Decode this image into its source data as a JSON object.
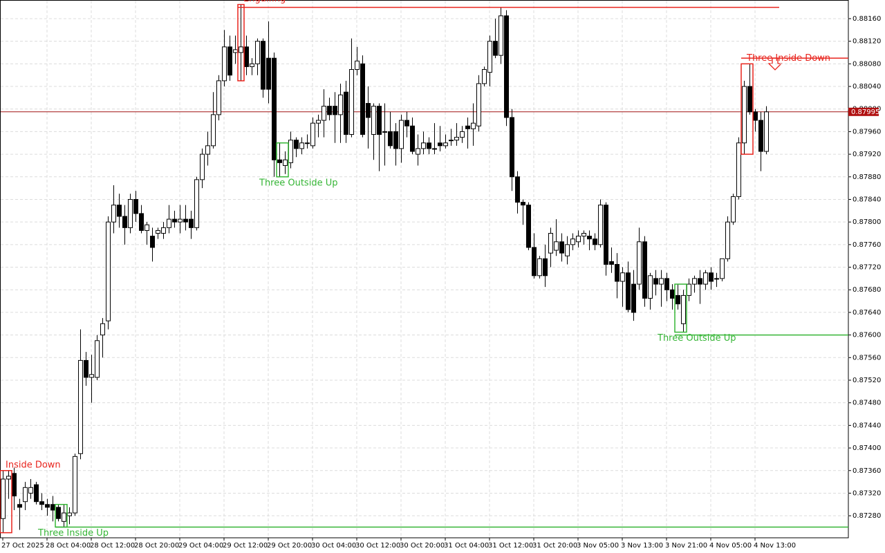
{
  "chart_data": {
    "type": "candlestick",
    "categories": [
      "27 Oct 2025",
      null,
      null,
      null,
      null,
      null,
      null,
      null,
      "28 Oct 04:00",
      null,
      null,
      null,
      null,
      null,
      null,
      null,
      "28 Oct 12:00",
      null,
      null,
      null,
      null,
      null,
      null,
      null,
      "28 Oct 20:00",
      null,
      null,
      null,
      null,
      null,
      null,
      null,
      "29 Oct 04:00",
      null,
      null,
      null,
      null,
      null,
      null,
      null,
      "29 Oct 12:00",
      null,
      null,
      null,
      null,
      null,
      null,
      null,
      "29 Oct 20:00",
      null,
      null,
      null,
      null,
      null,
      null,
      null,
      "30 Oct 04:00",
      null,
      null,
      null,
      null,
      null,
      null,
      null,
      "30 Oct 12:00",
      null,
      null,
      null,
      null,
      null,
      null,
      null,
      "30 Oct 20:00",
      null,
      null,
      null,
      null,
      null,
      null,
      null,
      "31 Oct 04:00",
      null,
      null,
      null,
      null,
      null,
      null,
      null,
      "31 Oct 12:00",
      null,
      null,
      null,
      null,
      null,
      null,
      null,
      "31 Oct 20:00",
      null,
      null,
      null,
      null,
      null,
      null,
      null,
      "3 Nov 05:00",
      null,
      null,
      null,
      null,
      null,
      null,
      null,
      "3 Nov 13:00",
      null,
      null,
      null,
      null,
      null,
      null,
      null,
      "3 Nov 21:00",
      null,
      null,
      null,
      null,
      null,
      null,
      null,
      "4 Nov 05:00",
      null,
      null,
      null,
      null,
      null,
      null,
      null,
      "4 Nov 13:00",
      null,
      null
    ],
    "open": [
      0.87275,
      0.87345,
      0.87355,
      0.873,
      0.87305,
      0.8732,
      0.87335,
      0.87305,
      0.873,
      0.873,
      0.87295,
      0.8727,
      0.8728,
      0.87285,
      0.8739,
      0.87555,
      0.87525,
      0.87525,
      0.876,
      0.87625,
      0.878,
      0.8783,
      0.8781,
      0.8779,
      0.8784,
      0.87815,
      0.87785,
      0.87775,
      0.8778,
      0.8778,
      0.8779,
      0.87805,
      0.878,
      0.87805,
      0.87805,
      0.8779,
      0.87875,
      0.8792,
      0.87935,
      0.8799,
      0.8805,
      0.8811,
      0.881,
      0.881,
      0.8811,
      0.88075,
      0.8808,
      0.8812,
      0.8809,
      0.8809,
      0.8791,
      0.879,
      0.87905,
      0.87945,
      0.8793,
      0.8794,
      0.87935,
      0.87975,
      0.8798,
      0.88005,
      0.88005,
      0.8799,
      0.8803,
      0.87955,
      0.8807,
      0.8808,
      0.8801,
      0.87955,
      0.88005,
      0.8796,
      0.8796,
      0.8796,
      0.8793,
      0.8798,
      0.8797,
      0.8792,
      0.8793,
      0.8794,
      0.8793,
      0.8794,
      0.87935,
      0.87945,
      0.87945,
      0.8795,
      0.8797,
      0.87965,
      0.8797,
      0.88045,
      0.88065,
      0.8812,
      0.88095,
      0.88165,
      0.87985,
      0.8788,
      0.87835,
      0.8783,
      0.87755,
      0.87705,
      0.87735,
      0.87745,
      0.8775,
      0.87765,
      0.8774,
      0.8776,
      0.87765,
      0.87775,
      0.87775,
      0.8777,
      0.8776,
      0.8783,
      0.8773,
      0.87725,
      0.87695,
      0.8771,
      0.8769,
      0.8769,
      0.87765,
      0.87665,
      0.877,
      0.8769,
      0.877,
      0.8768,
      0.8767,
      0.8762,
      0.8767,
      0.8769,
      0.877,
      0.8769,
      0.8771,
      0.877,
      0.877,
      0.87735,
      0.878,
      0.87845,
      0.8794,
      0.8804,
      0.87995,
      0.8798,
      0.87925
    ],
    "high": [
      0.8736,
      0.8736,
      0.87365,
      0.8731,
      0.8734,
      0.87345,
      0.8734,
      0.8732,
      0.8731,
      0.87315,
      0.873,
      0.873,
      0.87295,
      0.8739,
      0.8761,
      0.8757,
      0.87565,
      0.876,
      0.8763,
      0.8781,
      0.87865,
      0.8785,
      0.8783,
      0.8785,
      0.87855,
      0.8783,
      0.878,
      0.8779,
      0.8779,
      0.878,
      0.8783,
      0.8782,
      0.8783,
      0.8783,
      0.8782,
      0.8788,
      0.8793,
      0.8796,
      0.8803,
      0.8806,
      0.8814,
      0.8813,
      0.8813,
      0.88185,
      0.8813,
      0.8809,
      0.88125,
      0.88125,
      0.88155,
      0.881,
      0.8794,
      0.87925,
      0.8796,
      0.8795,
      0.8795,
      0.87955,
      0.87985,
      0.8799,
      0.88035,
      0.8802,
      0.8803,
      0.88045,
      0.8805,
      0.88125,
      0.8811,
      0.88095,
      0.8804,
      0.8801,
      0.8801,
      0.8801,
      0.87995,
      0.87975,
      0.8799,
      0.87995,
      0.87985,
      0.87955,
      0.8796,
      0.8795,
      0.87975,
      0.8797,
      0.87955,
      0.87965,
      0.87975,
      0.8797,
      0.87985,
      0.8801,
      0.8806,
      0.88075,
      0.8813,
      0.8816,
      0.8818,
      0.88175,
      0.88,
      0.8789,
      0.8784,
      0.87835,
      0.8778,
      0.8774,
      0.8776,
      0.8779,
      0.87805,
      0.8778,
      0.87775,
      0.8778,
      0.87785,
      0.87785,
      0.87785,
      0.8778,
      0.8784,
      0.87835,
      0.87755,
      0.87745,
      0.8772,
      0.8773,
      0.87715,
      0.8779,
      0.87775,
      0.8771,
      0.87715,
      0.87715,
      0.8771,
      0.8769,
      0.8769,
      0.8768,
      0.877,
      0.87705,
      0.87715,
      0.87715,
      0.8772,
      0.8771,
      0.87735,
      0.8781,
      0.8785,
      0.8795,
      0.8805,
      0.8808,
      0.88,
      0.87995,
      0.88005
    ],
    "low": [
      0.8725,
      0.8731,
      0.8729,
      0.87255,
      0.8729,
      0.8731,
      0.873,
      0.8729,
      0.8728,
      0.8727,
      0.8727,
      0.8726,
      0.87265,
      0.8728,
      0.8738,
      0.8751,
      0.8748,
      0.8752,
      0.8756,
      0.8761,
      0.8778,
      0.8779,
      0.8776,
      0.8778,
      0.878,
      0.8778,
      0.8776,
      0.8773,
      0.8777,
      0.8777,
      0.8778,
      0.8779,
      0.8778,
      0.87785,
      0.8777,
      0.87785,
      0.8786,
      0.879,
      0.8793,
      0.8798,
      0.8804,
      0.8805,
      0.8808,
      0.8805,
      0.8806,
      0.8806,
      0.8806,
      0.8802,
      0.8801,
      0.8788,
      0.8788,
      0.87885,
      0.87895,
      0.87915,
      0.8792,
      0.8793,
      0.8793,
      0.8795,
      0.8795,
      0.8798,
      0.8794,
      0.8794,
      0.8794,
      0.8795,
      0.8806,
      0.8795,
      0.8793,
      0.8791,
      0.8789,
      0.879,
      0.8793,
      0.879,
      0.87905,
      0.8795,
      0.8792,
      0.879,
      0.8792,
      0.8792,
      0.8792,
      0.87925,
      0.8793,
      0.87935,
      0.87935,
      0.8794,
      0.8793,
      0.87935,
      0.8796,
      0.8804,
      0.8804,
      0.8809,
      0.8808,
      0.8797,
      0.87855,
      0.87815,
      0.87795,
      0.8775,
      0.877,
      0.877,
      0.87685,
      0.8772,
      0.8774,
      0.8773,
      0.87725,
      0.8775,
      0.87755,
      0.8776,
      0.8775,
      0.8775,
      0.87755,
      0.87705,
      0.8771,
      0.87665,
      0.8765,
      0.8764,
      0.87625,
      0.8768,
      0.8765,
      0.87645,
      0.8767,
      0.8765,
      0.8766,
      0.87645,
      0.87645,
      0.87605,
      0.8766,
      0.87675,
      0.87655,
      0.8768,
      0.8768,
      0.87685,
      0.87695,
      0.8773,
      0.87795,
      0.8784,
      0.8792,
      0.8799,
      0.8796,
      0.8789,
      0.8792
    ],
    "close": [
      0.87345,
      0.8735,
      0.87315,
      0.87295,
      0.8733,
      0.8733,
      0.87305,
      0.873,
      0.87295,
      0.8729,
      0.87275,
      0.87285,
      0.87285,
      0.87385,
      0.87555,
      0.87525,
      0.8753,
      0.8759,
      0.8762,
      0.878,
      0.8783,
      0.8781,
      0.8779,
      0.8784,
      0.87815,
      0.87785,
      0.87795,
      0.87755,
      0.87785,
      0.8779,
      0.87805,
      0.878,
      0.87805,
      0.878,
      0.8779,
      0.87875,
      0.8792,
      0.87935,
      0.8799,
      0.8805,
      0.8811,
      0.8806,
      0.88105,
      0.8811,
      0.88075,
      0.8808,
      0.8812,
      0.88035,
      0.88035,
      0.8791,
      0.87905,
      0.8791,
      0.87945,
      0.8793,
      0.8794,
      0.8794,
      0.87975,
      0.8798,
      0.88005,
      0.8799,
      0.8799,
      0.88025,
      0.87955,
      0.8807,
      0.88085,
      0.87955,
      0.87985,
      0.88005,
      0.87955,
      0.8796,
      0.87935,
      0.8793,
      0.8798,
      0.8797,
      0.87925,
      0.8793,
      0.8794,
      0.8793,
      0.8793,
      0.87935,
      0.8794,
      0.87945,
      0.8795,
      0.8796,
      0.87965,
      0.87975,
      0.88045,
      0.8807,
      0.8812,
      0.88095,
      0.88165,
      0.87985,
      0.8788,
      0.87835,
      0.8783,
      0.87755,
      0.87705,
      0.87735,
      0.87705,
      0.8778,
      0.87765,
      0.87745,
      0.8776,
      0.8777,
      0.87775,
      0.8778,
      0.8777,
      0.8776,
      0.8783,
      0.87725,
      0.87725,
      0.87695,
      0.8771,
      0.87645,
      0.8764,
      0.87765,
      0.87665,
      0.87705,
      0.8769,
      0.877,
      0.8768,
      0.87665,
      0.87655,
      0.8767,
      0.8769,
      0.877,
      0.8769,
      0.8771,
      0.87695,
      0.877,
      0.87735,
      0.878,
      0.87845,
      0.8794,
      0.8804,
      0.87995,
      0.8798,
      0.87925,
      0.87995
    ],
    "ylim": [
      0.87241,
      0.88193
    ],
    "yticks": [
      {
        "value": 0.8728,
        "label": "0.87280"
      },
      {
        "value": 0.8732,
        "label": "0.87320"
      },
      {
        "value": 0.8736,
        "label": "0.87360"
      },
      {
        "value": 0.874,
        "label": "0.87400"
      },
      {
        "value": 0.8744,
        "label": "0.87440"
      },
      {
        "value": 0.8748,
        "label": "0.87480"
      },
      {
        "value": 0.8752,
        "label": "0.87520"
      },
      {
        "value": 0.8756,
        "label": "0.87560"
      },
      {
        "value": 0.876,
        "label": "0.87600"
      },
      {
        "value": 0.8764,
        "label": "0.87640"
      },
      {
        "value": 0.8768,
        "label": "0.87680"
      },
      {
        "value": 0.8772,
        "label": "0.87720"
      },
      {
        "value": 0.8776,
        "label": "0.87760"
      },
      {
        "value": 0.878,
        "label": "0.87800"
      },
      {
        "value": 0.8784,
        "label": "0.87840"
      },
      {
        "value": 0.8788,
        "label": "0.87880"
      },
      {
        "value": 0.8792,
        "label": "0.87920"
      },
      {
        "value": 0.8796,
        "label": "0.87960"
      },
      {
        "value": 0.88,
        "label": "0.88000"
      },
      {
        "value": 0.8804,
        "label": "0.88040"
      },
      {
        "value": 0.8808,
        "label": "0.88080"
      },
      {
        "value": 0.8812,
        "label": "0.88120"
      },
      {
        "value": 0.8816,
        "label": "0.88160"
      }
    ],
    "current_price": {
      "value": 0.87995,
      "label": "0.87995"
    },
    "grid": true,
    "annotations": [
      {
        "text": "Inside Down",
        "color": "#e8231c"
      },
      {
        "text": "Three Inside Up",
        "color": "#35b535",
        "level": 0.8726
      },
      {
        "text": "Engulfing",
        "color": "#e8231c",
        "level": 0.8818
      },
      {
        "text": "Three Outside Up",
        "color": "#35b535"
      },
      {
        "text": "Three Outside Up",
        "color": "#35b535",
        "level": 0.876
      },
      {
        "text": "Three Inside Down",
        "color": "#e8231c",
        "level": 0.8809
      }
    ]
  }
}
